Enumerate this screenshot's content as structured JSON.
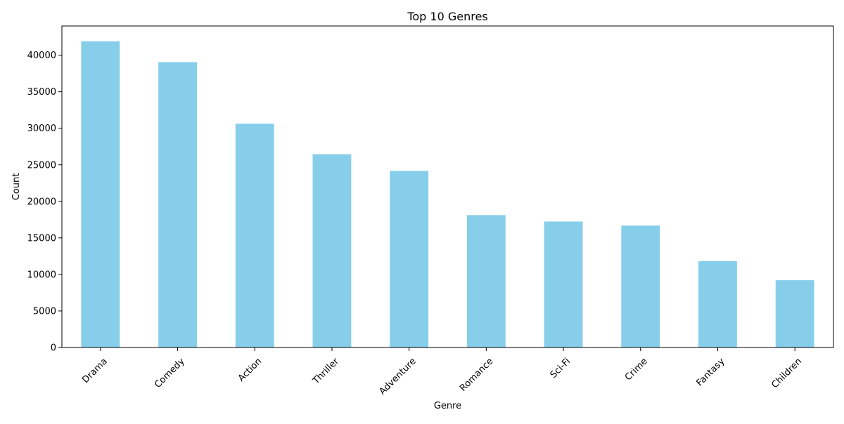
{
  "chart_data": {
    "type": "bar",
    "title": "Top 10 Genres",
    "xlabel": "Genre",
    "ylabel": "Count",
    "categories": [
      "Drama",
      "Comedy",
      "Action",
      "Thriller",
      "Adventure",
      "Romance",
      "Sci-Fi",
      "Crime",
      "Fantasy",
      "Children"
    ],
    "values": [
      41900,
      39050,
      30630,
      26450,
      24160,
      18120,
      17240,
      16680,
      11830,
      9210
    ],
    "ylim": [
      0,
      44000
    ],
    "yticks": [
      0,
      5000,
      10000,
      15000,
      20000,
      25000,
      30000,
      35000,
      40000
    ],
    "bar_color": "#87ceeb",
    "grid": false,
    "x_tick_rotation_deg": 45
  }
}
